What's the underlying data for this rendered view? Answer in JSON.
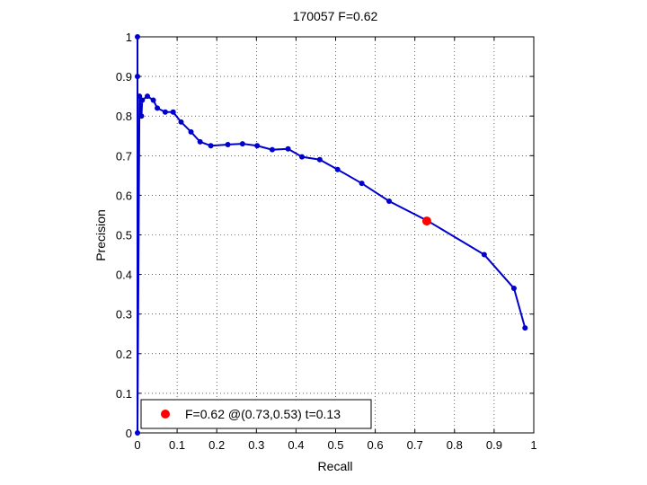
{
  "chart_data": {
    "type": "line",
    "title": "170057 F=0.62",
    "xlabel": "Recall",
    "ylabel": "Precision",
    "xlim": [
      0,
      1
    ],
    "ylim": [
      0,
      1
    ],
    "xticks": [
      "0",
      "0.1",
      "0.2",
      "0.3",
      "0.4",
      "0.5",
      "0.6",
      "0.7",
      "0.8",
      "0.9",
      "1"
    ],
    "yticks": [
      "0",
      "0.1",
      "0.2",
      "0.3",
      "0.4",
      "0.5",
      "0.6",
      "0.7",
      "0.8",
      "0.9",
      "1"
    ],
    "grid": true,
    "legend_position": "bottom-left",
    "series": [
      {
        "color": "#0000cc",
        "marker": "dot",
        "points": [
          [
            0.0,
            1.0
          ],
          [
            0.0,
            0.9
          ],
          [
            0.0,
            0.0
          ],
          [
            0.005,
            0.85
          ],
          [
            0.01,
            0.8
          ],
          [
            0.012,
            0.84
          ],
          [
            0.025,
            0.85
          ],
          [
            0.04,
            0.84
          ],
          [
            0.05,
            0.82
          ],
          [
            0.07,
            0.81
          ],
          [
            0.09,
            0.81
          ],
          [
            0.11,
            0.785
          ],
          [
            0.135,
            0.76
          ],
          [
            0.158,
            0.735
          ],
          [
            0.185,
            0.725
          ],
          [
            0.228,
            0.728
          ],
          [
            0.265,
            0.73
          ],
          [
            0.302,
            0.725
          ],
          [
            0.34,
            0.715
          ],
          [
            0.38,
            0.717
          ],
          [
            0.415,
            0.697
          ],
          [
            0.46,
            0.69
          ],
          [
            0.505,
            0.665
          ],
          [
            0.566,
            0.63
          ],
          [
            0.635,
            0.585
          ],
          [
            0.733,
            0.535
          ],
          [
            0.875,
            0.45
          ],
          [
            0.95,
            0.365
          ],
          [
            0.978,
            0.265
          ]
        ]
      }
    ],
    "optimum": {
      "color": "#ff0000",
      "x": 0.73,
      "y": 0.535,
      "label": "F=0.62 @(0.73,0.53) t=0.13"
    }
  }
}
